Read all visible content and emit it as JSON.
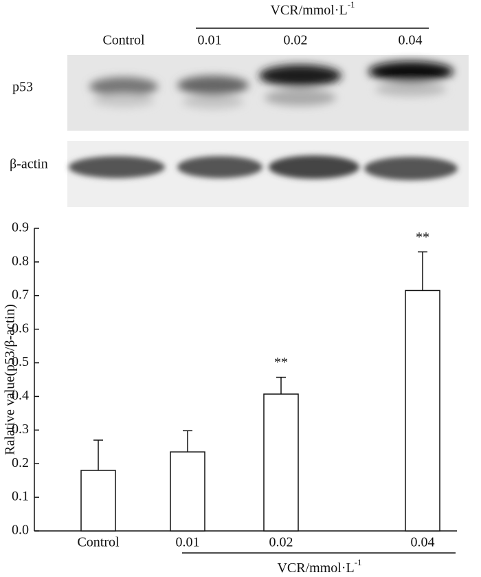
{
  "blot": {
    "lanes": [
      "Control",
      "0.01",
      "0.02",
      "0.04"
    ],
    "group_label": {
      "text": "VCR/mmol·L",
      "superscript": "-1"
    },
    "rows": [
      "p53",
      "β-actin"
    ]
  },
  "chart_data": {
    "type": "bar",
    "y_label": "Ralative value(p53/β-actin)",
    "categories": [
      "Control",
      "0.01",
      "0.02",
      "0.04"
    ],
    "values": [
      0.18,
      0.235,
      0.407,
      0.715
    ],
    "errors": [
      0.09,
      0.063,
      0.05,
      0.115
    ],
    "significance": [
      null,
      null,
      "**",
      "**"
    ],
    "group_label": {
      "text": "VCR/mmol·L",
      "superscript": "-1"
    },
    "color": "#ffffff",
    "ylim": [
      0,
      0.9
    ],
    "yticks": [
      {
        "value": 0,
        "label": "0.0"
      },
      0.1,
      0.2,
      0.3,
      0.4,
      0.5,
      0.6,
      0.7,
      0.8,
      0.9
    ]
  }
}
